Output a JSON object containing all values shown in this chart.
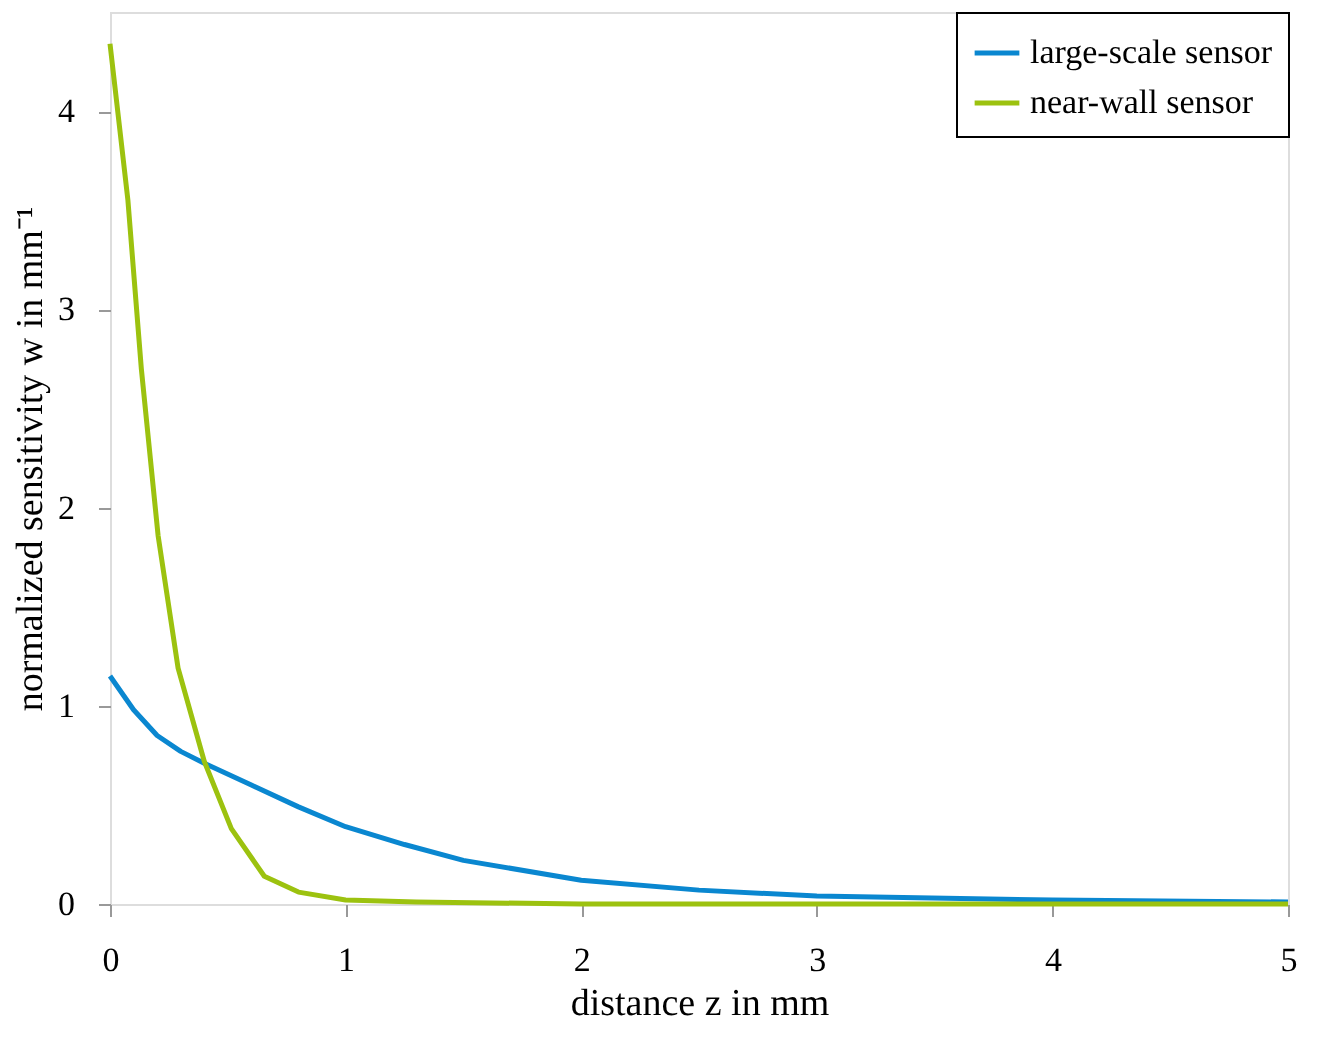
{
  "chart_data": {
    "type": "line",
    "xlabel": "distance z in mm",
    "ylabel": "normalized sensitivity w in mm⁻¹",
    "xlim": [
      0,
      5
    ],
    "ylim": [
      0,
      4.5
    ],
    "xticks": [
      0,
      1,
      2,
      3,
      4,
      5
    ],
    "yticks": [
      0,
      1,
      2,
      3,
      4
    ],
    "grid": false,
    "legend": "top right",
    "marker": "none",
    "line_style": "solid",
    "series": [
      {
        "name": "large-scale sensor",
        "color": "#0a87d0",
        "x": [
          0,
          0.1,
          0.2,
          0.3,
          0.4,
          0.6,
          0.8,
          1.0,
          1.25,
          1.5,
          2.0,
          2.5,
          3.0,
          4.0,
          5.0
        ],
        "values": [
          1.15,
          0.98,
          0.85,
          0.77,
          0.71,
          0.6,
          0.49,
          0.39,
          0.3,
          0.22,
          0.12,
          0.07,
          0.04,
          0.02,
          0.01
        ]
      },
      {
        "name": "near-wall sensor",
        "color": "#9cc20f",
        "x": [
          0,
          0.076,
          0.133,
          0.204,
          0.289,
          0.4,
          0.515,
          0.655,
          0.8,
          1.0,
          1.3,
          2.0,
          3.0,
          5.0
        ],
        "values": [
          4.34,
          3.55,
          2.7,
          1.86,
          1.19,
          0.72,
          0.38,
          0.14,
          0.06,
          0.02,
          0.01,
          0,
          0,
          0
        ]
      }
    ]
  }
}
